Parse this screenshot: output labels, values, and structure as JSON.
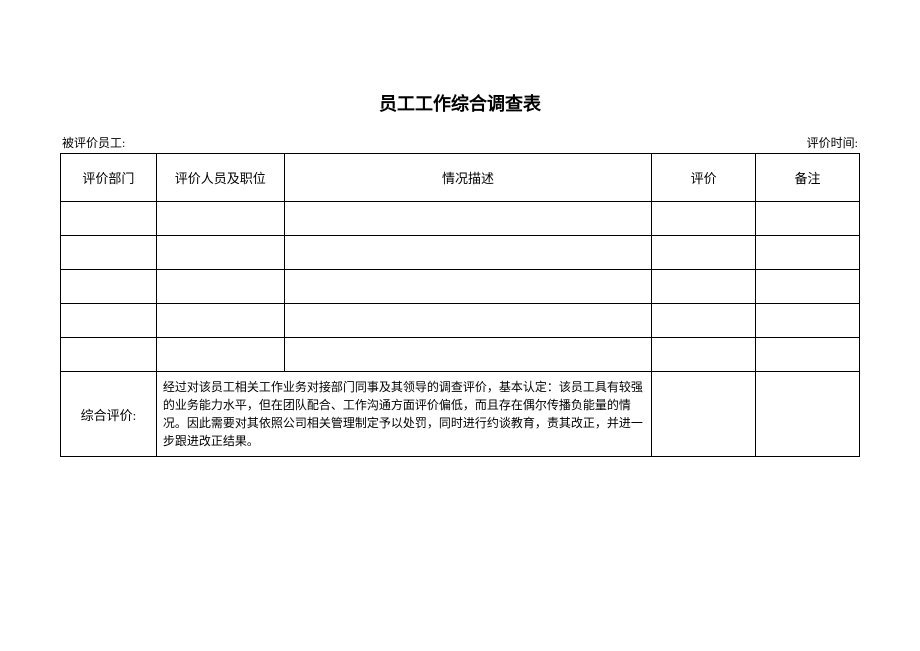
{
  "title": "员工工作综合调查表",
  "meta": {
    "evaluated_label": "被评价员工:",
    "time_label": "评价时间:"
  },
  "table": {
    "columns": [
      {
        "label": "评价部门",
        "width": "12%"
      },
      {
        "label": "评价人员及职位",
        "width": "16%"
      },
      {
        "label": "情况描述",
        "width": "46%"
      },
      {
        "label": "评价",
        "width": "13%"
      },
      {
        "label": "备注",
        "width": "13%"
      }
    ],
    "empty_row_count": 5,
    "summary": {
      "label": "综合评价:",
      "text": "经过对该员工相关工作业务对接部门同事及其领导的调查评价，基本认定：该员工具有较强的业务能力水平，但在团队配合、工作沟通方面评价偏低，而且存在偶尔传播负能量的情况。因此需要对其依照公司相关管理制定予以处罚，同时进行约谈教育，责其改正，并进一步跟进改正结果。"
    }
  },
  "style": {
    "border_color": "#000000",
    "background_color": "#ffffff",
    "text_color": "#000000",
    "title_fontsize": 18,
    "header_fontsize": 13,
    "body_fontsize": 12
  }
}
